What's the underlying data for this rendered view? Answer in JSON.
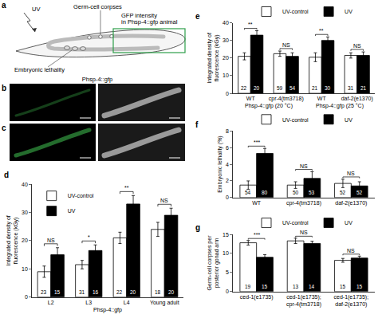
{
  "diagram": {
    "label": "a",
    "uv": "UV",
    "germ_cell_corpses": "Germ-cell corpses",
    "gfp": [
      "GFP intensity",
      "in Phsp-4::gfp animal"
    ],
    "embryonic_lethality": "Embryonic lethality"
  },
  "images": {
    "header": "Phsp-4::gfp",
    "rows": [
      "b",
      "c"
    ]
  },
  "chart_data": [
    {
      "type": "bar",
      "title": "d",
      "ylabel": "Integrated density of fluorescence (kGy)",
      "xlabel": "Phsp-4::gfp",
      "categories": [
        "L2",
        "L3",
        "L4",
        "Young adult"
      ],
      "series": [
        {
          "name": "UV-control",
          "color": "#ffffff",
          "values": [
            9,
            11.5,
            21,
            24
          ],
          "errors": [
            2,
            1.5,
            2,
            2.5
          ],
          "n": [
            23,
            31,
            22,
            18
          ]
        },
        {
          "name": "UV",
          "color": "#000000",
          "values": [
            15,
            16.5,
            33,
            29
          ],
          "errors": [
            2.5,
            2,
            3,
            2.5
          ],
          "n": [
            15,
            16,
            20,
            20
          ]
        }
      ],
      "significance": [
        "NS",
        "*",
        "**",
        "NS"
      ],
      "ylim": [
        0,
        40
      ],
      "yticks": [
        0,
        10,
        20,
        30,
        40
      ],
      "legend": "top-left",
      "grid": false
    },
    {
      "type": "bar",
      "title": "e",
      "ylabel": "Integrated density of fluorescence (kGy)",
      "categories": [
        "WT",
        "cpr-4(tm3718)",
        "WT",
        "daf-2(e1370)"
      ],
      "groups": [
        {
          "label": "Phsp-4::gfp (20 °C)",
          "span": 2
        },
        {
          "label": "Phsp-4::gfp (25 °C)",
          "span": 2
        }
      ],
      "series": [
        {
          "name": "UV-control",
          "color": "#ffffff",
          "values": [
            21,
            22.5,
            20.5,
            21.5
          ],
          "errors": [
            2,
            1.5,
            2.5,
            1.5
          ],
          "n": [
            22,
            59,
            21,
            31
          ]
        },
        {
          "name": "UV",
          "color": "#000000",
          "values": [
            33,
            21,
            30,
            21.5
          ],
          "errors": [
            2.5,
            2,
            2,
            2
          ],
          "n": [
            20,
            54,
            30,
            21
          ]
        }
      ],
      "significance": [
        "**",
        "NS",
        "**",
        "NS"
      ],
      "ylim": [
        0,
        40
      ],
      "yticks": [
        0,
        10,
        20,
        30,
        40
      ],
      "legend": "top",
      "grid": false
    },
    {
      "type": "bar",
      "title": "f",
      "ylabel": "Embryonic lethality (%)",
      "categories": [
        "WT",
        "cpr-4(tm3718)",
        "daf-2(e1370)"
      ],
      "series": [
        {
          "name": "UV-control",
          "color": "#ffffff",
          "values": [
            1.5,
            1.5,
            1.7
          ],
          "errors": [
            0.5,
            0.4,
            0.5
          ],
          "n": [
            54,
            50,
            52
          ]
        },
        {
          "name": "UV",
          "color": "#000000",
          "values": [
            5.3,
            2.3,
            1.4
          ],
          "errors": [
            0.6,
            0.8,
            0.5
          ],
          "n": [
            80,
            53,
            52
          ]
        }
      ],
      "significance": [
        "***",
        "NS",
        "NS"
      ],
      "ylim": [
        0,
        8
      ],
      "yticks": [
        0,
        2,
        4,
        6,
        8
      ],
      "legend": "top",
      "grid": false
    },
    {
      "type": "bar",
      "title": "g",
      "ylabel": "Germ-cell corpses per posterior gonad arm",
      "categories": [
        "ced-1(e1735)",
        "ced-1(e1735); cpr-4(tm3718)",
        "ced-1(e1735); daf-2(e1370)"
      ],
      "series": [
        {
          "name": "UV-control",
          "color": "#ffffff",
          "values": [
            12.8,
            13.3,
            8.2
          ],
          "errors": [
            0.6,
            0.7,
            0.5
          ],
          "n": [
            19,
            13,
            15
          ]
        },
        {
          "name": "UV",
          "color": "#000000",
          "values": [
            9,
            12.6,
            8.8
          ],
          "errors": [
            0.7,
            0.6,
            0.5
          ],
          "n": [
            15,
            14,
            15
          ]
        }
      ],
      "significance": [
        "***",
        "NS",
        "NS"
      ],
      "ylim": [
        0,
        15
      ],
      "yticks": [
        0,
        5,
        10,
        15
      ],
      "legend": "top",
      "grid": false
    }
  ]
}
